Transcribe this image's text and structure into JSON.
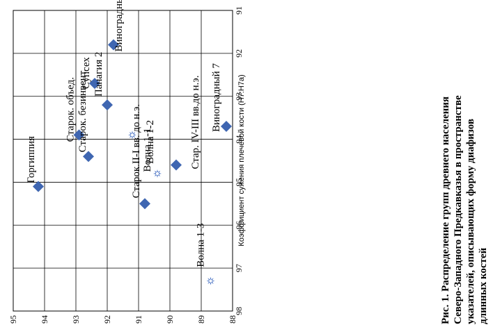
{
  "chart_data": {
    "type": "scatter",
    "title": "",
    "xlabel": "Коэффициент сужения плечевой кости (Н7:Н7а)",
    "ylabel": "",
    "xlim": [
      91,
      98
    ],
    "ylim": [
      88,
      95
    ],
    "x_ticks": [
      91,
      92,
      93,
      94,
      95,
      96,
      97,
      98
    ],
    "y_ticks": [
      88,
      89,
      90,
      91,
      92,
      93,
      94,
      95
    ],
    "grid": true,
    "orientation": "rotated-90",
    "colors": {
      "diamond": "#3f66b1",
      "star": "#4a73c4"
    },
    "points": [
      {
        "label": "Горгиппия",
        "x": 95.1,
        "y": 94.2,
        "marker": "diamond"
      },
      {
        "label": "Старок. безинвент.",
        "x": 94.4,
        "y": 92.6,
        "marker": "diamond"
      },
      {
        "label": "Старок. объед.",
        "x": 93.9,
        "y": 92.9,
        "marker": "diamond"
      },
      {
        "label": "Панагия 2",
        "x": 93.2,
        "y": 92.0,
        "marker": "diamond"
      },
      {
        "label": "Супсех",
        "x": 92.7,
        "y": 92.4,
        "marker": "diamond"
      },
      {
        "label": "Виноградный СВ",
        "x": 91.8,
        "y": 91.8,
        "marker": "diamond"
      },
      {
        "label": "Старок.II-I вв. до н.э.",
        "x": 95.5,
        "y": 90.8,
        "marker": "diamond"
      },
      {
        "label": "Волна 1-1",
        "x": 93.9,
        "y": 91.2,
        "marker": "star"
      },
      {
        "label": "Волна 1-2",
        "x": 94.8,
        "y": 90.4,
        "marker": "star"
      },
      {
        "label": "Стар. IV-III вв.до н.э.",
        "x": 94.6,
        "y": 89.8,
        "marker": "diamond"
      },
      {
        "label": "Волна 1-3",
        "x": 97.3,
        "y": 88.7,
        "marker": "star"
      },
      {
        "label": "Виноградный 7",
        "x": 93.7,
        "y": 88.2,
        "marker": "diamond"
      }
    ]
  },
  "caption": {
    "lines": [
      "Рис. 1. Распределение групп древнего населения",
      "Северо-Западного Предкавказья в пространстве",
      "указателей, описывающих форму диафизов",
      "длинных костей"
    ]
  }
}
